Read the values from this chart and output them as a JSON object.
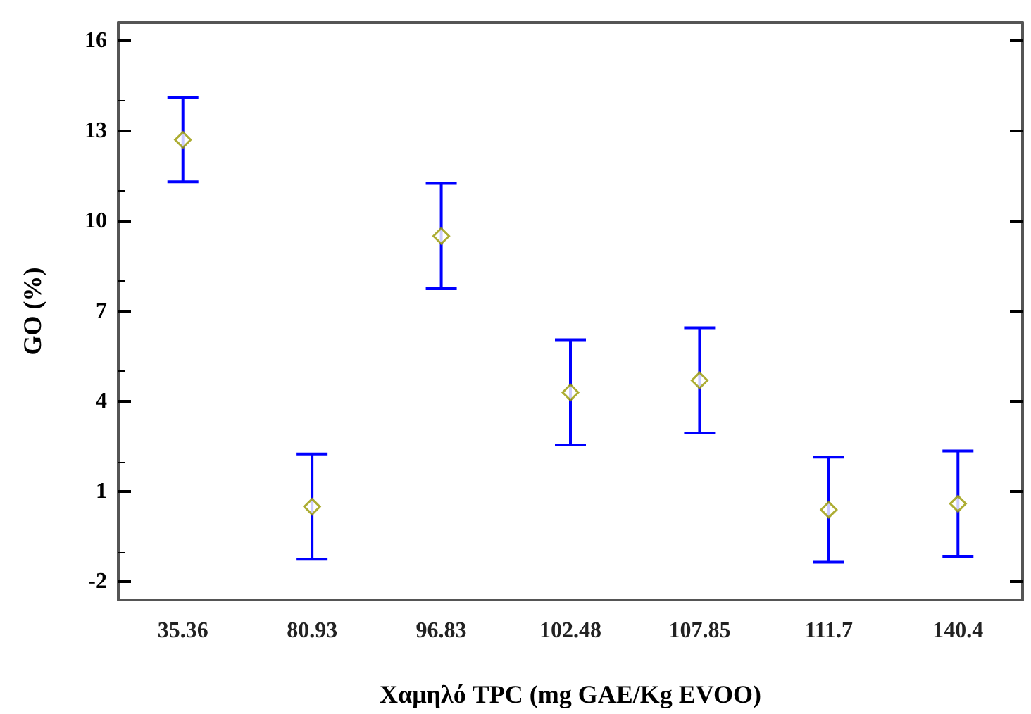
{
  "chart_data": {
    "type": "scatter",
    "xlabel": "Χαμηλό TPC (mg GAE/Kg EVOO)",
    "ylabel": "GO (%)",
    "categories": [
      "35.36",
      "80.93",
      "96.83",
      "102.48",
      "107.85",
      "111.7",
      "140.4"
    ],
    "series": [
      {
        "color": "#999900",
        "values": [
          12.7,
          0.5,
          9.5,
          4.3,
          4.7,
          0.4,
          0.6
        ],
        "errors": [
          1.4,
          1.75,
          1.75,
          1.75,
          1.75,
          1.75,
          1.75
        ]
      }
    ],
    "ylim": [
      -2.6,
      16.6
    ],
    "yticks": [
      -2,
      1,
      4,
      7,
      10,
      13,
      16
    ],
    "marker": "diamond",
    "grid": false
  }
}
